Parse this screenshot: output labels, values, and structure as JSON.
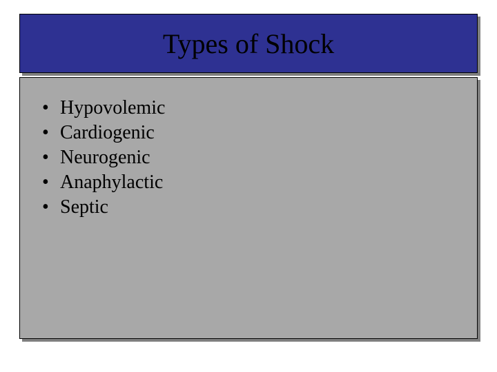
{
  "slide": {
    "title": "Types of Shock",
    "title_fontsize": 40,
    "title_bg_color": "#2e3192",
    "title_text_color": "#000000",
    "body_bg_color": "#a8a8a8",
    "body_fontsize": 28,
    "bullet_marker": "•",
    "shadow_color": "#808080",
    "border_color": "#000000",
    "bullets": [
      "Hypovolemic",
      "Cardiogenic",
      "Neurogenic",
      "Anaphylactic",
      "Septic"
    ]
  }
}
